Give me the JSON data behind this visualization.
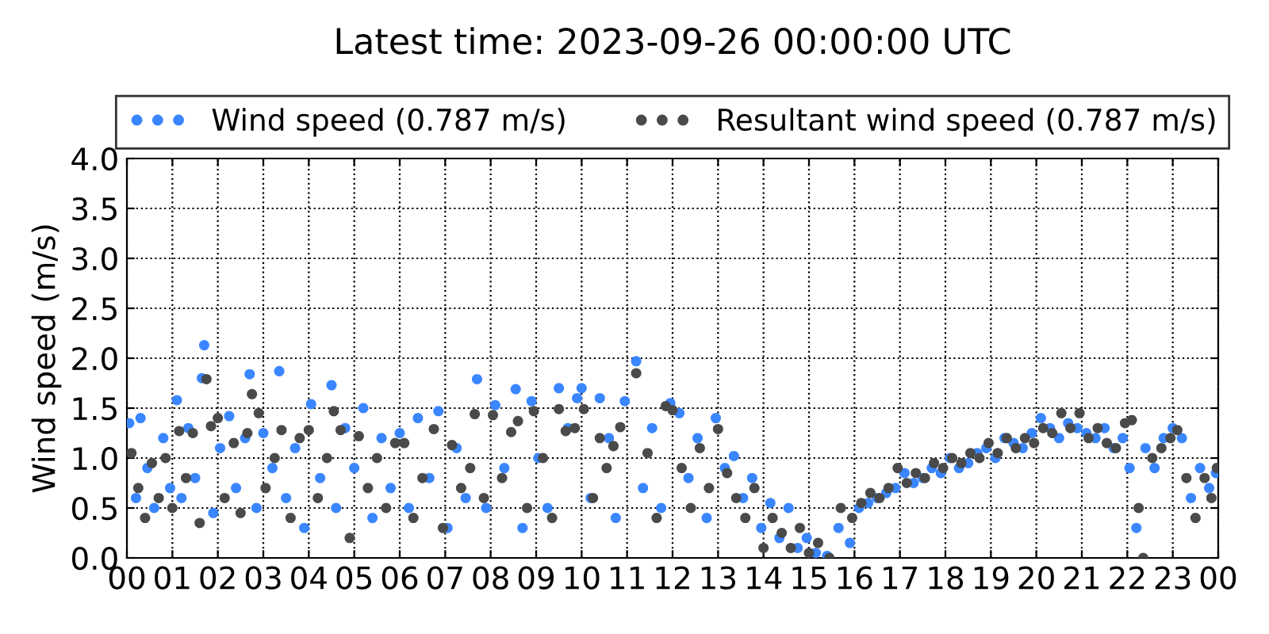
{
  "chart_data": {
    "type": "scatter",
    "title": "Latest time: 2023-09-26 00:00:00 UTC",
    "ylabel": "Wind speed (m/s)",
    "xlim": [
      0,
      24
    ],
    "ylim": [
      0.0,
      4.0
    ],
    "xticks": [
      {
        "value": 0,
        "label": "00"
      },
      {
        "value": 1,
        "label": "01"
      },
      {
        "value": 2,
        "label": "02"
      },
      {
        "value": 3,
        "label": "03"
      },
      {
        "value": 4,
        "label": "04"
      },
      {
        "value": 5,
        "label": "05"
      },
      {
        "value": 6,
        "label": "06"
      },
      {
        "value": 7,
        "label": "07"
      },
      {
        "value": 8,
        "label": "08"
      },
      {
        "value": 9,
        "label": "09"
      },
      {
        "value": 10,
        "label": "10"
      },
      {
        "value": 11,
        "label": "11"
      },
      {
        "value": 12,
        "label": "12"
      },
      {
        "value": 13,
        "label": "13"
      },
      {
        "value": 14,
        "label": "14"
      },
      {
        "value": 15,
        "label": "15"
      },
      {
        "value": 16,
        "label": "16"
      },
      {
        "value": 17,
        "label": "17"
      },
      {
        "value": 18,
        "label": "18"
      },
      {
        "value": 19,
        "label": "19"
      },
      {
        "value": 20,
        "label": "20"
      },
      {
        "value": 21,
        "label": "21"
      },
      {
        "value": 22,
        "label": "22"
      },
      {
        "value": 23,
        "label": "23"
      },
      {
        "value": 24,
        "label": "00"
      }
    ],
    "yticks": [
      {
        "value": 0,
        "label": "0.0"
      },
      0.5,
      {
        "value": 1,
        "label": "1.0"
      },
      1.5,
      {
        "value": 2,
        "label": "2.0"
      },
      2.5,
      {
        "value": 3,
        "label": "3.0"
      },
      3.5,
      {
        "value": 4,
        "label": "4.0"
      }
    ],
    "grid": true,
    "legend": "top",
    "marker": "circle",
    "series": [
      {
        "name": "Wind speed (0.787 m/s)",
        "color": "#3a86ff",
        "x": [
          0.05,
          0.2,
          0.3,
          0.45,
          0.6,
          0.8,
          0.95,
          1.1,
          1.2,
          1.35,
          1.5,
          1.65,
          1.7,
          1.9,
          2.05,
          2.25,
          2.4,
          2.6,
          2.7,
          2.85,
          3.0,
          3.2,
          3.35,
          3.5,
          3.7,
          3.9,
          4.05,
          4.25,
          4.5,
          4.6,
          4.8,
          5.0,
          5.2,
          5.4,
          5.6,
          5.8,
          6.0,
          6.2,
          6.4,
          6.65,
          6.85,
          7.05,
          7.25,
          7.45,
          7.7,
          7.9,
          8.1,
          8.3,
          8.55,
          8.7,
          8.9,
          9.05,
          9.25,
          9.5,
          9.7,
          9.9,
          10.0,
          10.2,
          10.4,
          10.6,
          10.75,
          10.95,
          11.2,
          11.35,
          11.55,
          11.75,
          11.95,
          12.15,
          12.35,
          12.55,
          12.75,
          12.95,
          13.15,
          13.35,
          13.55,
          13.75,
          13.95,
          14.15,
          14.35,
          14.55,
          14.75,
          14.95,
          15.15,
          15.4,
          15.65,
          15.9,
          16.1,
          16.3,
          16.5,
          16.7,
          16.9,
          17.1,
          17.3,
          17.5,
          17.7,
          17.9,
          18.1,
          18.3,
          18.5,
          18.7,
          18.9,
          19.1,
          19.3,
          19.5,
          19.7,
          19.9,
          20.1,
          20.3,
          20.5,
          20.7,
          20.9,
          21.1,
          21.3,
          21.5,
          21.7,
          21.9,
          22.05,
          22.2,
          22.4,
          22.6,
          22.8,
          23.0,
          23.2,
          23.4,
          23.6,
          23.8,
          23.95
        ],
        "values": [
          1.35,
          0.6,
          1.4,
          0.9,
          0.5,
          1.2,
          0.7,
          1.58,
          0.6,
          1.3,
          0.8,
          1.8,
          2.13,
          0.45,
          1.1,
          1.42,
          0.7,
          1.2,
          1.84,
          0.5,
          1.25,
          0.9,
          1.87,
          0.6,
          1.1,
          0.3,
          1.54,
          0.8,
          1.73,
          0.5,
          1.3,
          0.9,
          1.5,
          0.4,
          1.2,
          0.7,
          1.25,
          0.5,
          1.4,
          0.8,
          1.47,
          0.3,
          1.1,
          0.6,
          1.79,
          0.5,
          1.53,
          0.9,
          1.69,
          0.3,
          1.57,
          1.0,
          0.5,
          1.7,
          1.3,
          1.6,
          1.7,
          0.6,
          1.6,
          1.2,
          0.4,
          1.57,
          1.97,
          0.7,
          1.3,
          0.5,
          1.55,
          1.45,
          0.8,
          1.2,
          0.4,
          1.4,
          0.9,
          1.02,
          0.6,
          0.8,
          0.3,
          0.55,
          0.2,
          0.5,
          0.1,
          0.2,
          0.05,
          0.02,
          0.3,
          0.15,
          0.5,
          0.55,
          0.6,
          0.65,
          0.7,
          0.85,
          0.75,
          0.8,
          0.9,
          0.85,
          1.0,
          0.9,
          0.95,
          1.05,
          1.1,
          1.0,
          1.2,
          1.15,
          1.1,
          1.25,
          1.4,
          1.3,
          1.2,
          1.35,
          1.3,
          1.25,
          1.2,
          1.3,
          1.1,
          1.2,
          0.9,
          0.3,
          1.1,
          0.9,
          1.2,
          1.3,
          1.2,
          0.6,
          0.9,
          0.7,
          0.85
        ]
      },
      {
        "name": "Resultant wind speed (0.787 m/s)",
        "color": "#4a4a4a",
        "x": [
          0.1,
          0.25,
          0.4,
          0.55,
          0.7,
          0.85,
          1.0,
          1.15,
          1.3,
          1.45,
          1.6,
          1.75,
          1.85,
          2.0,
          2.15,
          2.35,
          2.5,
          2.65,
          2.75,
          2.9,
          3.05,
          3.25,
          3.4,
          3.6,
          3.8,
          4.0,
          4.2,
          4.4,
          4.55,
          4.7,
          4.9,
          5.1,
          5.3,
          5.5,
          5.7,
          5.9,
          6.1,
          6.3,
          6.5,
          6.75,
          6.95,
          7.15,
          7.35,
          7.55,
          7.65,
          7.85,
          8.05,
          8.25,
          8.45,
          8.6,
          8.8,
          8.95,
          9.15,
          9.35,
          9.5,
          9.65,
          9.85,
          10.05,
          10.25,
          10.4,
          10.55,
          10.7,
          10.85,
          11.2,
          11.45,
          11.65,
          11.85,
          12.0,
          12.2,
          12.4,
          12.6,
          12.8,
          13.0,
          13.2,
          13.4,
          13.6,
          13.8,
          14.0,
          14.2,
          14.4,
          14.6,
          14.8,
          15.0,
          15.2,
          15.45,
          15.7,
          15.95,
          16.15,
          16.35,
          16.55,
          16.75,
          16.95,
          17.15,
          17.35,
          17.55,
          17.75,
          17.95,
          18.15,
          18.35,
          18.55,
          18.75,
          18.95,
          19.15,
          19.35,
          19.55,
          19.75,
          19.95,
          20.15,
          20.35,
          20.55,
          20.75,
          20.95,
          21.15,
          21.35,
          21.55,
          21.75,
          21.95,
          22.1,
          22.25,
          22.35,
          22.55,
          22.75,
          22.95,
          23.1,
          23.3,
          23.5,
          23.7,
          23.85,
          23.97
        ],
        "values": [
          1.05,
          0.7,
          0.4,
          0.95,
          0.6,
          1.0,
          0.5,
          1.27,
          0.8,
          1.25,
          0.35,
          1.79,
          1.32,
          1.4,
          0.6,
          1.15,
          0.45,
          1.25,
          1.64,
          1.45,
          0.7,
          1.0,
          1.28,
          0.4,
          1.2,
          1.28,
          0.6,
          1.0,
          1.47,
          1.28,
          0.2,
          1.22,
          0.7,
          1.0,
          0.5,
          1.15,
          1.15,
          0.4,
          0.8,
          1.29,
          0.3,
          1.13,
          0.7,
          0.9,
          1.44,
          0.6,
          1.43,
          0.8,
          1.26,
          1.37,
          0.5,
          1.47,
          1.0,
          0.4,
          1.49,
          1.27,
          1.3,
          1.49,
          0.6,
          1.2,
          0.9,
          1.12,
          1.31,
          1.85,
          1.05,
          0.4,
          1.52,
          1.48,
          0.9,
          0.5,
          1.1,
          0.7,
          1.29,
          0.85,
          0.6,
          0.4,
          0.7,
          0.1,
          0.4,
          0.25,
          0.1,
          0.3,
          0.05,
          0.15,
          0.0,
          0.5,
          0.4,
          0.55,
          0.65,
          0.6,
          0.7,
          0.9,
          0.75,
          0.85,
          0.8,
          0.95,
          0.9,
          1.0,
          0.95,
          1.05,
          1.0,
          1.15,
          1.05,
          1.2,
          1.1,
          1.2,
          1.15,
          1.3,
          1.25,
          1.45,
          1.3,
          1.45,
          1.2,
          1.3,
          1.15,
          1.1,
          1.35,
          1.38,
          0.5,
          0.0,
          1.0,
          1.1,
          1.2,
          1.28,
          0.8,
          0.4,
          0.8,
          0.6,
          0.9
        ]
      }
    ]
  }
}
